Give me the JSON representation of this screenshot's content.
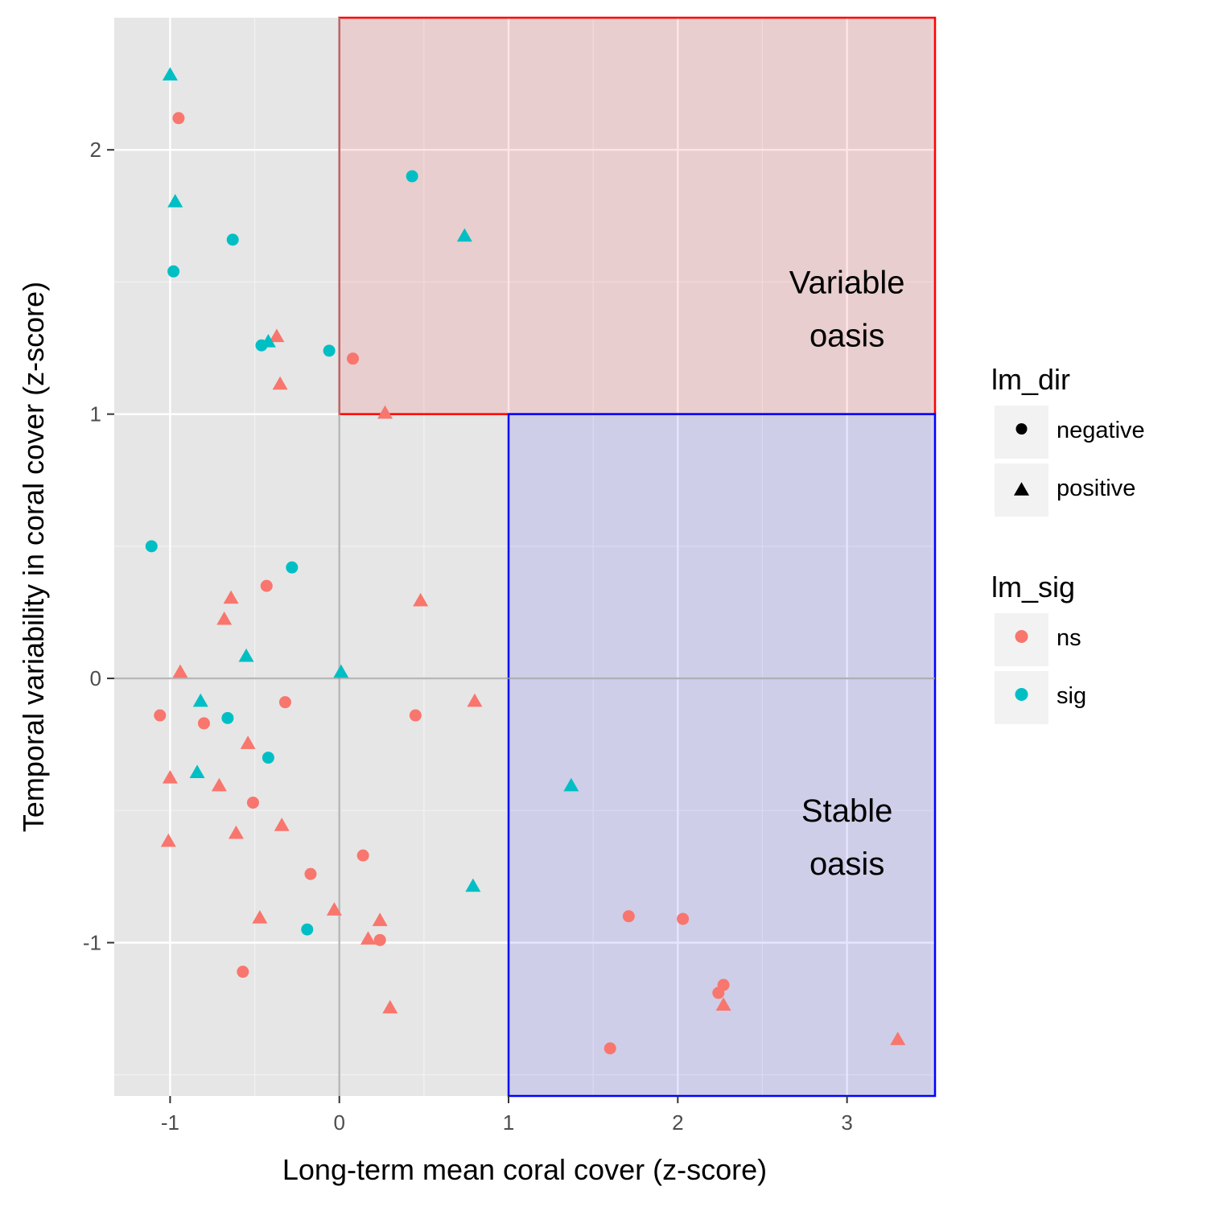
{
  "chart_data": {
    "type": "scatter",
    "xlabel": "Long-term mean coral cover (z-score)",
    "ylabel": "Temporal variability in coral cover (z-score)",
    "xlim": [
      -1.33,
      3.52
    ],
    "ylim": [
      -1.58,
      2.5
    ],
    "x_ticks": [
      -1,
      0,
      1,
      2,
      3
    ],
    "x_tick_labels": [
      "-1",
      "0",
      "1",
      "2",
      "3"
    ],
    "y_ticks": [
      -1,
      0,
      1,
      2
    ],
    "y_tick_labels": [
      "-1",
      "0",
      "1",
      "2"
    ],
    "grid": true,
    "reference_lines": {
      "x": 0,
      "y": 0
    },
    "regions": [
      {
        "label_lines": [
          "Variable",
          "oasis"
        ],
        "x_range": [
          0,
          3.52
        ],
        "y_range": [
          1,
          2.5
        ],
        "stroke": "#ff0000",
        "fill": "#ff0000",
        "label_at": [
          3.0,
          1.4
        ]
      },
      {
        "label_lines": [
          "Stable",
          "oasis"
        ],
        "x_range": [
          1,
          3.52
        ],
        "y_range": [
          -1.58,
          1
        ],
        "stroke": "#0000ff",
        "fill": "#0000ff",
        "label_at": [
          3.0,
          -0.6
        ]
      }
    ],
    "legends": [
      {
        "title": "lm_dir",
        "items": [
          {
            "label": "negative",
            "shape": "circle"
          },
          {
            "label": "positive",
            "shape": "triangle"
          }
        ]
      },
      {
        "title": "lm_sig",
        "items": [
          {
            "label": "ns",
            "color": "#F8766D"
          },
          {
            "label": "sig",
            "color": "#00BFC4"
          }
        ]
      }
    ],
    "legend_position": "right",
    "colors": {
      "ns": "#F8766D",
      "sig": "#00BFC4"
    },
    "points": [
      {
        "x": -1.0,
        "y": 2.28,
        "dir": "positive",
        "sig": "sig"
      },
      {
        "x": -0.95,
        "y": 2.12,
        "dir": "negative",
        "sig": "ns"
      },
      {
        "x": -0.97,
        "y": 1.8,
        "dir": "positive",
        "sig": "sig"
      },
      {
        "x": -0.63,
        "y": 1.66,
        "dir": "negative",
        "sig": "sig"
      },
      {
        "x": -0.98,
        "y": 1.54,
        "dir": "negative",
        "sig": "sig"
      },
      {
        "x": -0.37,
        "y": 1.29,
        "dir": "positive",
        "sig": "ns"
      },
      {
        "x": -0.42,
        "y": 1.27,
        "dir": "positive",
        "sig": "sig"
      },
      {
        "x": -0.46,
        "y": 1.26,
        "dir": "negative",
        "sig": "sig"
      },
      {
        "x": -0.35,
        "y": 1.11,
        "dir": "positive",
        "sig": "ns"
      },
      {
        "x": -0.06,
        "y": 1.24,
        "dir": "negative",
        "sig": "sig"
      },
      {
        "x": 0.08,
        "y": 1.21,
        "dir": "negative",
        "sig": "ns"
      },
      {
        "x": 0.43,
        "y": 1.9,
        "dir": "negative",
        "sig": "sig"
      },
      {
        "x": 0.74,
        "y": 1.67,
        "dir": "positive",
        "sig": "sig"
      },
      {
        "x": 0.27,
        "y": 1.0,
        "dir": "positive",
        "sig": "ns"
      },
      {
        "x": -1.11,
        "y": 0.5,
        "dir": "negative",
        "sig": "sig"
      },
      {
        "x": -0.28,
        "y": 0.42,
        "dir": "negative",
        "sig": "sig"
      },
      {
        "x": -0.43,
        "y": 0.35,
        "dir": "negative",
        "sig": "ns"
      },
      {
        "x": -0.64,
        "y": 0.3,
        "dir": "positive",
        "sig": "ns"
      },
      {
        "x": -0.68,
        "y": 0.22,
        "dir": "positive",
        "sig": "ns"
      },
      {
        "x": 0.48,
        "y": 0.29,
        "dir": "positive",
        "sig": "ns"
      },
      {
        "x": -0.55,
        "y": 0.08,
        "dir": "positive",
        "sig": "sig"
      },
      {
        "x": -0.94,
        "y": 0.02,
        "dir": "positive",
        "sig": "ns"
      },
      {
        "x": 0.01,
        "y": 0.02,
        "dir": "positive",
        "sig": "sig"
      },
      {
        "x": -0.82,
        "y": -0.09,
        "dir": "positive",
        "sig": "sig"
      },
      {
        "x": 0.8,
        "y": -0.09,
        "dir": "positive",
        "sig": "ns"
      },
      {
        "x": -0.32,
        "y": -0.09,
        "dir": "negative",
        "sig": "ns"
      },
      {
        "x": -1.06,
        "y": -0.14,
        "dir": "negative",
        "sig": "ns"
      },
      {
        "x": -0.8,
        "y": -0.17,
        "dir": "negative",
        "sig": "ns"
      },
      {
        "x": -0.66,
        "y": -0.15,
        "dir": "negative",
        "sig": "sig"
      },
      {
        "x": 0.45,
        "y": -0.14,
        "dir": "negative",
        "sig": "ns"
      },
      {
        "x": -0.54,
        "y": -0.25,
        "dir": "positive",
        "sig": "ns"
      },
      {
        "x": -0.42,
        "y": -0.3,
        "dir": "negative",
        "sig": "sig"
      },
      {
        "x": -0.84,
        "y": -0.36,
        "dir": "positive",
        "sig": "sig"
      },
      {
        "x": -1.0,
        "y": -0.38,
        "dir": "positive",
        "sig": "ns"
      },
      {
        "x": -0.71,
        "y": -0.41,
        "dir": "positive",
        "sig": "ns"
      },
      {
        "x": 1.37,
        "y": -0.41,
        "dir": "positive",
        "sig": "sig"
      },
      {
        "x": -0.51,
        "y": -0.47,
        "dir": "negative",
        "sig": "ns"
      },
      {
        "x": -0.34,
        "y": -0.56,
        "dir": "positive",
        "sig": "ns"
      },
      {
        "x": -0.61,
        "y": -0.59,
        "dir": "positive",
        "sig": "ns"
      },
      {
        "x": -1.01,
        "y": -0.62,
        "dir": "positive",
        "sig": "ns"
      },
      {
        "x": 0.14,
        "y": -0.67,
        "dir": "negative",
        "sig": "ns"
      },
      {
        "x": -0.17,
        "y": -0.74,
        "dir": "negative",
        "sig": "ns"
      },
      {
        "x": 0.79,
        "y": -0.79,
        "dir": "positive",
        "sig": "sig"
      },
      {
        "x": -0.03,
        "y": -0.88,
        "dir": "positive",
        "sig": "ns"
      },
      {
        "x": -0.47,
        "y": -0.91,
        "dir": "positive",
        "sig": "ns"
      },
      {
        "x": 0.24,
        "y": -0.92,
        "dir": "positive",
        "sig": "ns"
      },
      {
        "x": 1.71,
        "y": -0.9,
        "dir": "negative",
        "sig": "ns"
      },
      {
        "x": 2.03,
        "y": -0.91,
        "dir": "negative",
        "sig": "ns"
      },
      {
        "x": -0.19,
        "y": -0.95,
        "dir": "negative",
        "sig": "sig"
      },
      {
        "x": 0.17,
        "y": -0.99,
        "dir": "positive",
        "sig": "ns"
      },
      {
        "x": 0.24,
        "y": -0.99,
        "dir": "negative",
        "sig": "ns"
      },
      {
        "x": -0.57,
        "y": -1.11,
        "dir": "negative",
        "sig": "ns"
      },
      {
        "x": 2.27,
        "y": -1.16,
        "dir": "negative",
        "sig": "ns"
      },
      {
        "x": 2.24,
        "y": -1.19,
        "dir": "negative",
        "sig": "ns"
      },
      {
        "x": 2.27,
        "y": -1.24,
        "dir": "positive",
        "sig": "ns"
      },
      {
        "x": 0.3,
        "y": -1.25,
        "dir": "positive",
        "sig": "ns"
      },
      {
        "x": 1.6,
        "y": -1.4,
        "dir": "negative",
        "sig": "ns"
      },
      {
        "x": 3.3,
        "y": -1.37,
        "dir": "positive",
        "sig": "ns"
      }
    ]
  }
}
